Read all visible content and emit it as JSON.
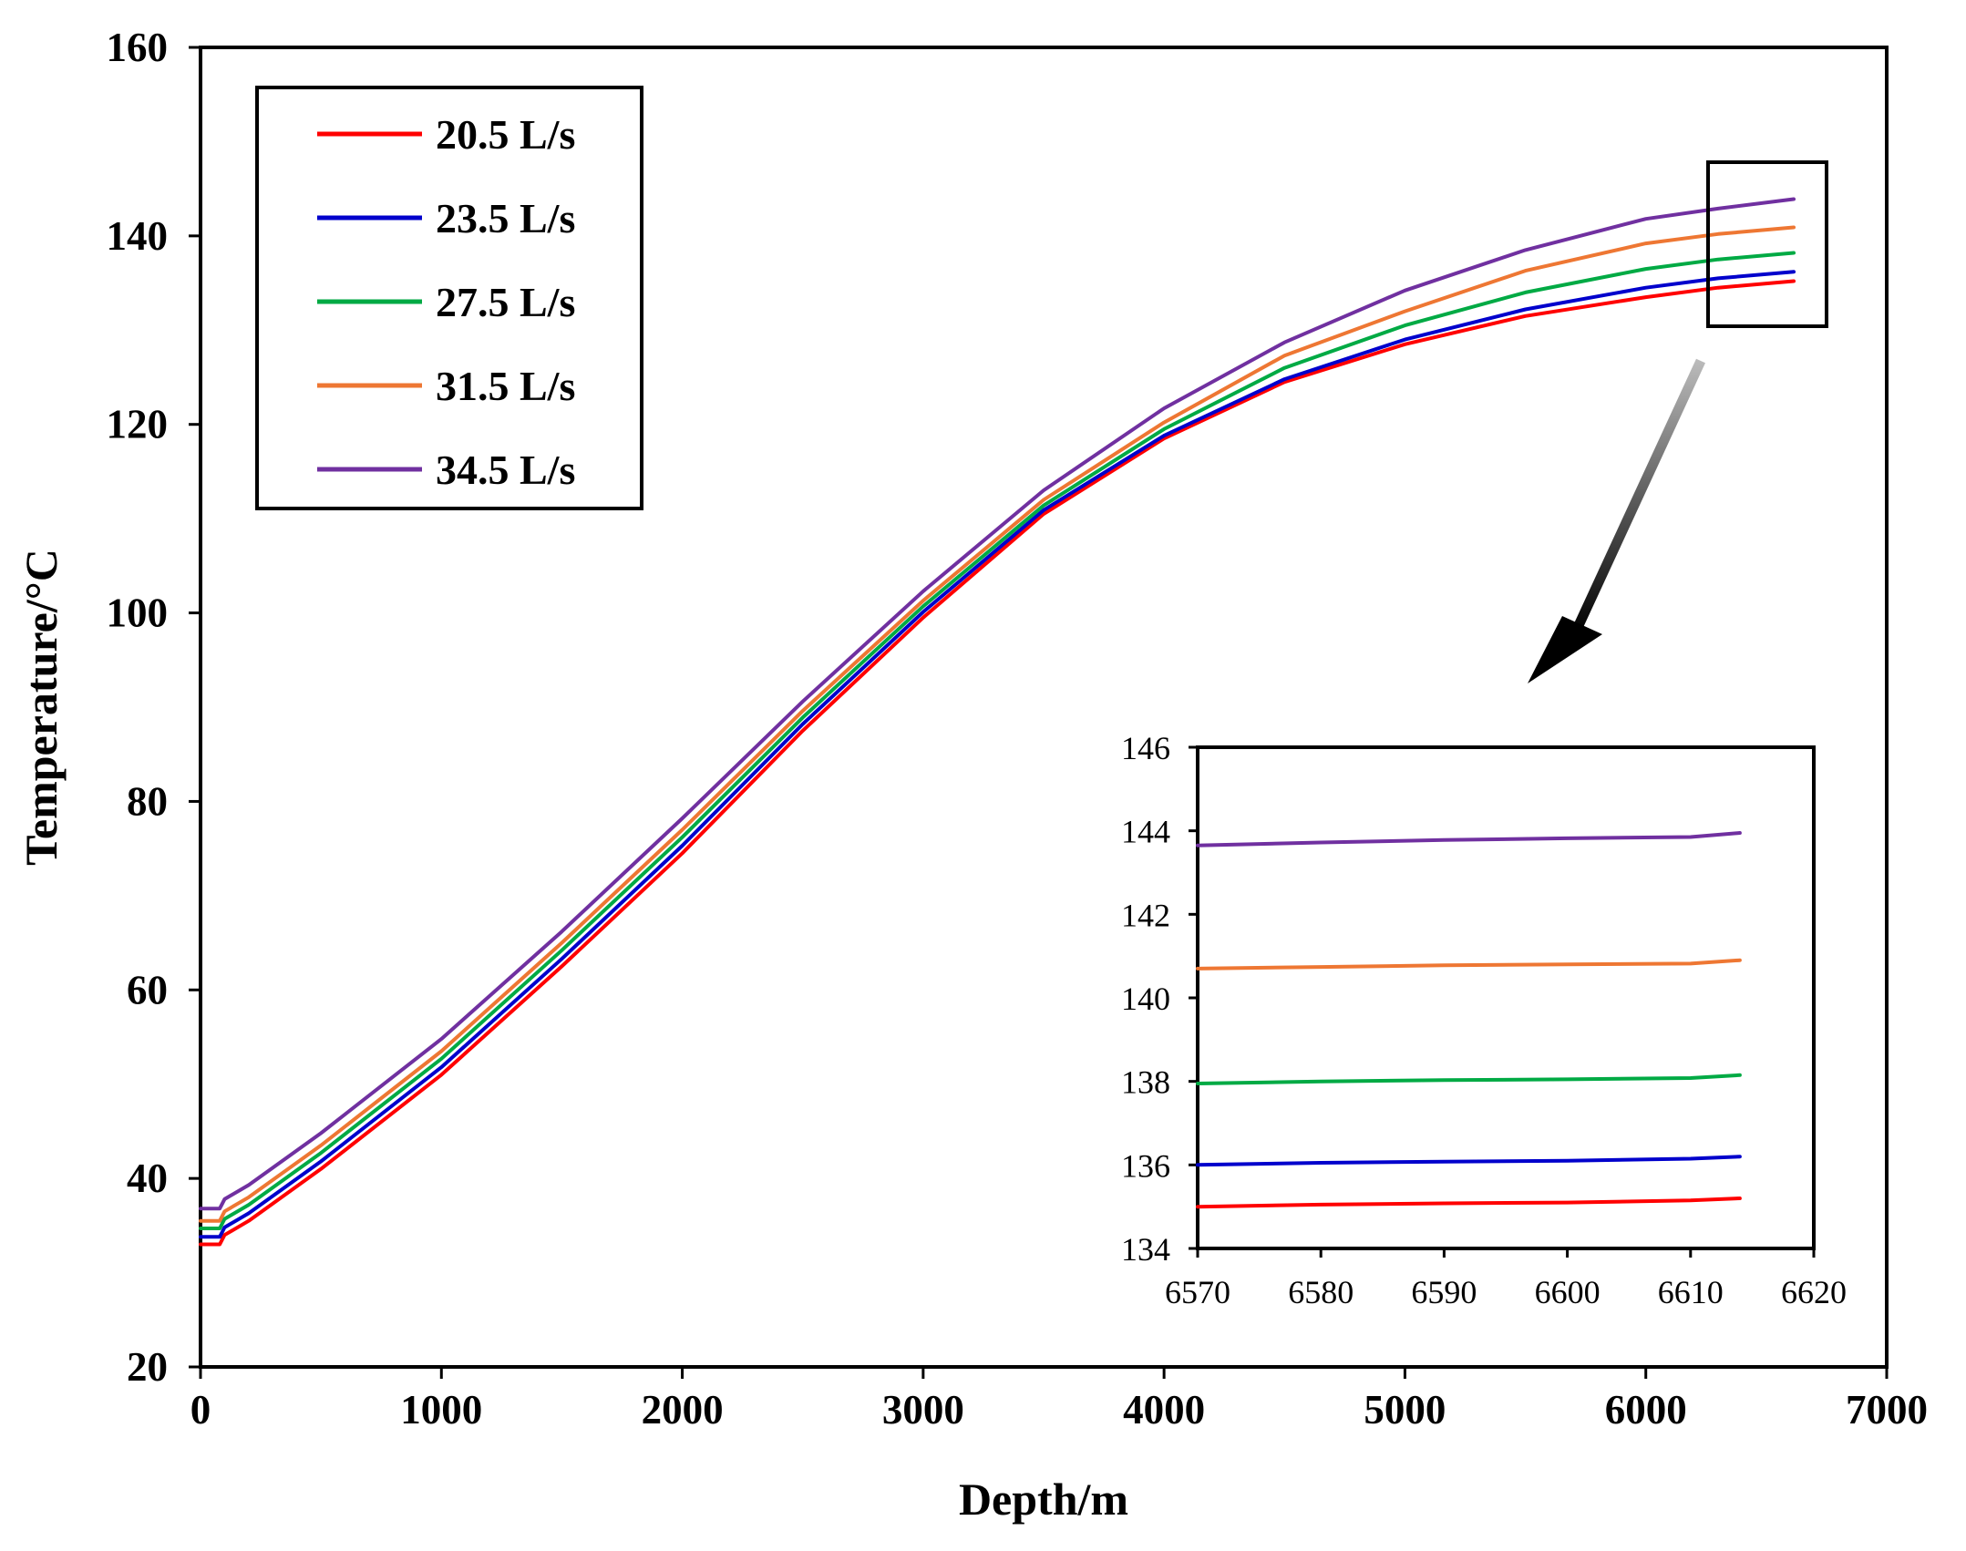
{
  "chart_data": [
    {
      "type": "line",
      "role": "main",
      "title": "",
      "xlabel": "Depth/m",
      "ylabel": "Temperature/°C",
      "xlim": [
        0,
        7000
      ],
      "ylim": [
        20,
        160
      ],
      "xticks": [
        0,
        1000,
        2000,
        3000,
        4000,
        5000,
        6000,
        7000
      ],
      "yticks": [
        20,
        40,
        60,
        80,
        100,
        120,
        140,
        160
      ],
      "grid": false,
      "legend_position": "top-left",
      "x": [
        0,
        80,
        100,
        200,
        500,
        1000,
        1500,
        2000,
        2500,
        3000,
        3500,
        4000,
        4500,
        5000,
        5500,
        6000,
        6300,
        6614
      ],
      "series": [
        {
          "name": "20.5 L/s",
          "color": "#ff0000",
          "values": [
            33.0,
            33.0,
            34.0,
            35.5,
            41.0,
            51.0,
            62.5,
            74.5,
            87.5,
            99.5,
            110.5,
            118.5,
            124.5,
            128.5,
            131.5,
            133.5,
            134.5,
            135.2
          ]
        },
        {
          "name": "23.5 L/s",
          "color": "#0000cc",
          "values": [
            33.8,
            33.8,
            34.8,
            36.3,
            41.8,
            51.8,
            63.3,
            75.3,
            88.2,
            100.1,
            110.9,
            118.8,
            124.8,
            129.0,
            132.2,
            134.5,
            135.5,
            136.2
          ]
        },
        {
          "name": "27.5 L/s",
          "color": "#00aa44",
          "values": [
            34.7,
            34.7,
            35.7,
            37.2,
            42.7,
            52.7,
            64.2,
            76.2,
            88.9,
            100.7,
            111.4,
            119.5,
            126.0,
            130.5,
            134.0,
            136.5,
            137.5,
            138.2
          ]
        },
        {
          "name": "31.5 L/s",
          "color": "#ee7733",
          "values": [
            35.5,
            35.5,
            36.5,
            38.0,
            43.5,
            53.5,
            65.0,
            77.0,
            89.6,
            101.3,
            112.0,
            120.2,
            127.3,
            132.0,
            136.3,
            139.2,
            140.2,
            140.9
          ]
        },
        {
          "name": "34.5 L/s",
          "color": "#7030a0",
          "values": [
            36.8,
            36.8,
            37.8,
            39.3,
            44.8,
            54.8,
            66.2,
            78.2,
            90.6,
            102.3,
            113.0,
            121.7,
            128.7,
            134.2,
            138.5,
            141.8,
            142.9,
            143.9
          ]
        }
      ]
    },
    {
      "type": "line",
      "role": "inset",
      "title": "",
      "xlabel": "",
      "ylabel": "",
      "xlim": [
        6570,
        6620
      ],
      "ylim": [
        134,
        146
      ],
      "xticks": [
        6570,
        6580,
        6590,
        6600,
        6610,
        6620
      ],
      "yticks": [
        134,
        136,
        138,
        140,
        142,
        144,
        146
      ],
      "grid": false,
      "x": [
        6570,
        6580,
        6590,
        6600,
        6610,
        6614
      ],
      "series": [
        {
          "name": "20.5 L/s",
          "color": "#ff0000",
          "values": [
            135.0,
            135.05,
            135.08,
            135.1,
            135.15,
            135.2
          ]
        },
        {
          "name": "23.5 L/s",
          "color": "#0000cc",
          "values": [
            136.0,
            136.05,
            136.08,
            136.1,
            136.15,
            136.2
          ]
        },
        {
          "name": "27.5 L/s",
          "color": "#00aa44",
          "values": [
            137.95,
            138.0,
            138.03,
            138.05,
            138.08,
            138.15
          ]
        },
        {
          "name": "31.5 L/s",
          "color": "#ee7733",
          "values": [
            140.7,
            140.74,
            140.78,
            140.8,
            140.82,
            140.9
          ]
        },
        {
          "name": "34.5 L/s",
          "color": "#7030a0",
          "values": [
            143.65,
            143.72,
            143.78,
            143.82,
            143.85,
            143.95
          ]
        }
      ]
    }
  ]
}
